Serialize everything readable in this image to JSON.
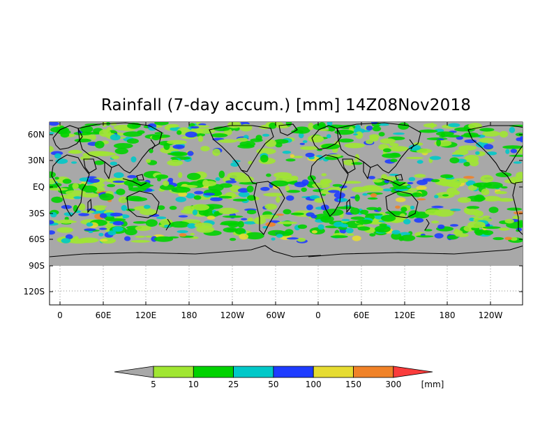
{
  "title": "Rainfall (7-day accum.) [mm] 14Z08Nov2018",
  "axes": {
    "lat_labels": [
      "60N",
      "30N",
      "EQ",
      "30S",
      "60S",
      "90S",
      "120S"
    ],
    "lon_labels": [
      "0",
      "60E",
      "120E",
      "180",
      "120W",
      "60W",
      "0",
      "60E",
      "120E",
      "180",
      "120W"
    ]
  },
  "colorbar": {
    "unit": "[mm]",
    "levels": [
      "5",
      "10",
      "25",
      "50",
      "100",
      "150",
      "300"
    ],
    "colors": [
      "#a8a8a8",
      "#a0e632",
      "#00d200",
      "#00c8c8",
      "#1e3cff",
      "#e6dc32",
      "#f08228",
      "#fa3c3c"
    ]
  },
  "colors": {
    "no_data": "#a8a8a8",
    "land_outline": "#000000",
    "grid": "#888888"
  }
}
